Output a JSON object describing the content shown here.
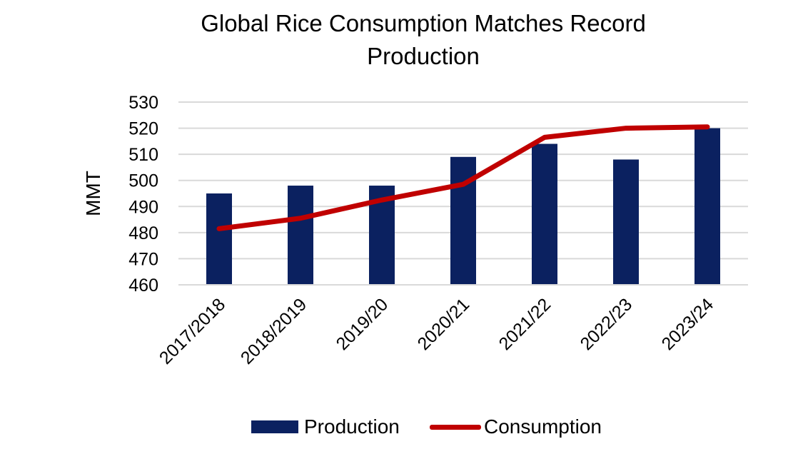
{
  "chart_data": {
    "type": "bar",
    "title": "Global Rice Consumption Matches Record Production",
    "ylabel": "MMT",
    "xlabel": "",
    "ylim": [
      460,
      530
    ],
    "yticks": [
      460,
      470,
      480,
      490,
      500,
      510,
      520,
      530
    ],
    "categories": [
      "2017/2018",
      "2018/2019",
      "2019/20",
      "2020/21",
      "2021/22",
      "2022/23",
      "2023/24"
    ],
    "series": [
      {
        "name": "Production",
        "type": "bar",
        "color": "#0B2160",
        "values": [
          495,
          498,
          498,
          509,
          514,
          508,
          520
        ]
      },
      {
        "name": "Consumption",
        "type": "line",
        "color": "#C00000",
        "values": [
          481.5,
          485.5,
          492.5,
          498.5,
          516.5,
          520,
          520.5
        ]
      }
    ],
    "grid": true,
    "legend_position": "bottom"
  }
}
